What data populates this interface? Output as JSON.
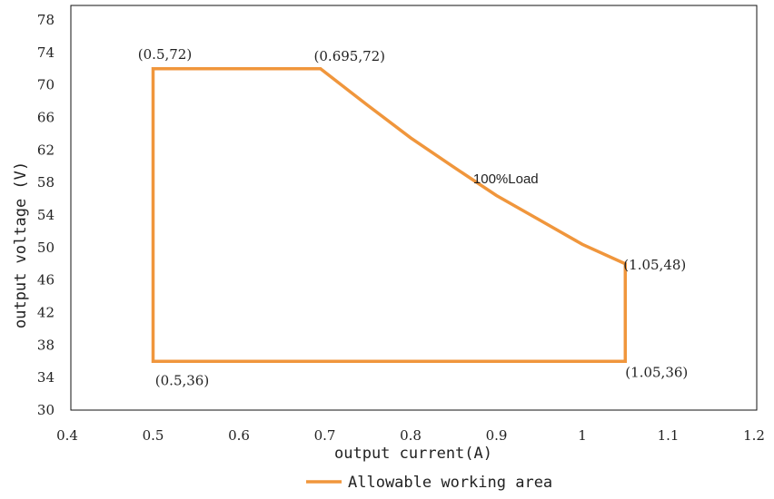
{
  "chart_data": {
    "type": "line",
    "title": "",
    "xlabel": "output current(A)",
    "ylabel": "output voltage (V)",
    "xlim": [
      0.4,
      1.2
    ],
    "ylim": [
      30,
      78
    ],
    "x_ticks": [
      0.4,
      0.5,
      0.6,
      0.7,
      0.8,
      0.9,
      1.0,
      1.1,
      1.2
    ],
    "x_tick_labels": [
      "0.4",
      "0.5",
      "0.6",
      "0.7",
      "0.8",
      "0.9",
      "1",
      "1.1",
      "1.2"
    ],
    "y_ticks": [
      30,
      34,
      38,
      42,
      46,
      50,
      54,
      58,
      62,
      66,
      70,
      74,
      78
    ],
    "y_tick_labels": [
      "30",
      "34",
      "38",
      "42",
      "46",
      "50",
      "54",
      "58",
      "62",
      "66",
      "70",
      "74",
      "78"
    ],
    "grid": false,
    "legend_position": "bottom-center",
    "series": [
      {
        "name": "Allowable working area",
        "color": "#f0963c",
        "x": [
          0.5,
          0.5,
          0.695,
          0.75,
          0.8,
          0.85,
          0.9,
          0.95,
          1.0,
          1.05,
          1.05,
          0.5
        ],
        "y": [
          36,
          72,
          72,
          67.5,
          63.5,
          59.9,
          56.4,
          53.4,
          50.4,
          48,
          36,
          36
        ]
      }
    ],
    "annotations": [
      {
        "text": "(0.5,72)",
        "x": 0.5,
        "y": 72,
        "position": "above"
      },
      {
        "text": "(0.695,72)",
        "x": 0.695,
        "y": 72,
        "position": "above-right"
      },
      {
        "text": "(1.05,48)",
        "x": 1.05,
        "y": 48,
        "position": "right"
      },
      {
        "text": "(1.05,36)",
        "x": 1.05,
        "y": 36,
        "position": "below-right"
      },
      {
        "text": "(0.5,36)",
        "x": 0.5,
        "y": 36,
        "position": "below"
      },
      {
        "text": "100%Load",
        "x": 0.875,
        "y": 58.6,
        "position": "right"
      }
    ]
  }
}
